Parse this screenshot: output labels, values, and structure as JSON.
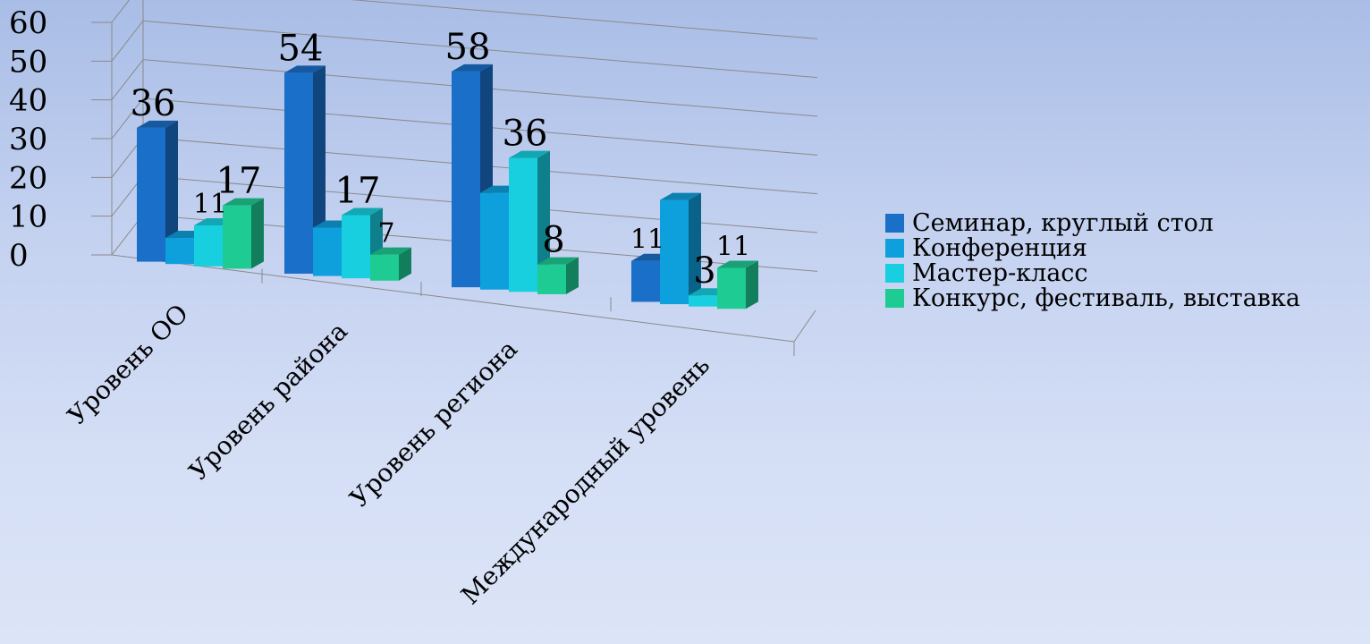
{
  "chart_data": {
    "type": "bar",
    "title": "",
    "xlabel": "",
    "ylabel": "",
    "ylim": [
      0,
      60
    ],
    "yticks": [
      "0",
      "10",
      "20",
      "30",
      "40",
      "50",
      "60"
    ],
    "categories": [
      "Уровень ОО",
      "Уровень района",
      "Уровень региона",
      "Международный уровень"
    ],
    "series": [
      {
        "name": "Семинар, круглый стол",
        "values": [
          36,
          54,
          58,
          11
        ],
        "labels": [
          "36",
          "54",
          "58",
          "11"
        ],
        "color": "#1a6fc9"
      },
      {
        "name": "Конференция",
        "values": [
          7,
          13,
          26,
          28
        ],
        "labels": [
          "",
          "",
          "",
          ""
        ],
        "color": "#0ea0dd"
      },
      {
        "name": "Мастер-класс",
        "values": [
          11,
          17,
          36,
          3
        ],
        "labels": [
          "11",
          "17",
          "36",
          "3"
        ],
        "color": "#18cfe0"
      },
      {
        "name": "Конкурс, фестиваль, выставка",
        "values": [
          17,
          7,
          8,
          11
        ],
        "labels": [
          "17",
          "7",
          "8",
          "11"
        ],
        "color": "#1ecb93"
      }
    ],
    "grid": true,
    "legend": "right",
    "style": "3d"
  }
}
